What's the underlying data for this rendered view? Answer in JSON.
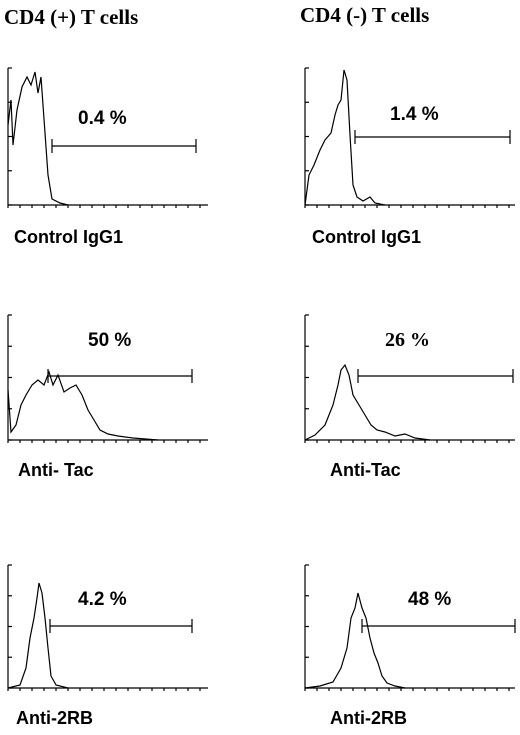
{
  "columns": [
    {
      "header": "CD4 (+)  T cells",
      "panels": [
        {
          "percent": "0.4 %",
          "label": "Control IgG1"
        },
        {
          "percent": "50 %",
          "label": "Anti- Tac"
        },
        {
          "percent": "4.2 %",
          "label": "Anti-2RB"
        }
      ]
    },
    {
      "header": "CD4 (-)  T cells",
      "panels": [
        {
          "percent": "1.4 %",
          "label": "Control IgG1"
        },
        {
          "percent": "26 %",
          "label": "Anti-Tac"
        },
        {
          "percent": "48 %",
          "label": "Anti-2RB"
        }
      ]
    }
  ]
}
